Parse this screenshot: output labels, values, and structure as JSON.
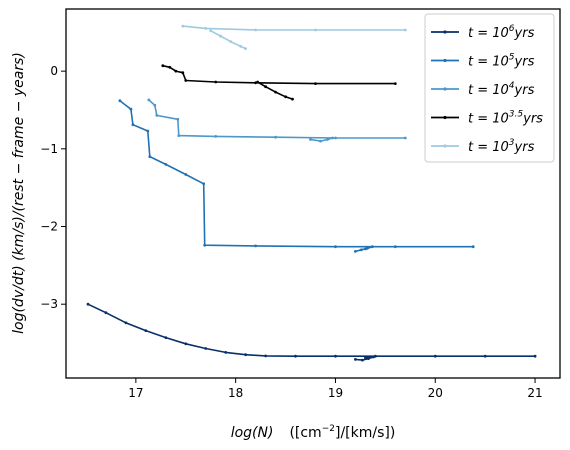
{
  "chart_data": {
    "type": "line",
    "xlabel": "log(N)   ([cm^-2]/[km/s])",
    "xlabel_parts": {
      "main": "log(N)",
      "unit_open": "([cm",
      "unit_exp": "−2",
      "unit_close": "]/[km/s])"
    },
    "ylabel": "log(dv/dt)   (km/s)/(rest − frame − years)",
    "xlim": [
      16.3,
      21.25
    ],
    "ylim": [
      -3.95,
      0.8
    ],
    "xticks": [
      17,
      18,
      19,
      20,
      21
    ],
    "xtick_labels": [
      "17",
      "18",
      "19",
      "20",
      "21"
    ],
    "yticks": [
      0,
      -1,
      -2,
      -3
    ],
    "ytick_labels": [
      "0",
      "−1",
      "−2",
      "−3"
    ],
    "grid": false,
    "legend_position": "top-right",
    "series": [
      {
        "name": "t = 10^6 yrs",
        "label_base": "t = 10",
        "label_exp": "6",
        "label_tail": "yrs",
        "color": "#08306b",
        "points": [
          [
            16.52,
            -3.0
          ],
          [
            16.7,
            -3.11
          ],
          [
            16.9,
            -3.24
          ],
          [
            17.1,
            -3.34
          ],
          [
            17.3,
            -3.43
          ],
          [
            17.5,
            -3.51
          ],
          [
            17.7,
            -3.57
          ],
          [
            17.9,
            -3.62
          ],
          [
            18.1,
            -3.65
          ],
          [
            18.3,
            -3.665
          ],
          [
            18.6,
            -3.67
          ],
          [
            19.0,
            -3.67
          ],
          [
            19.4,
            -3.67
          ],
          [
            20.0,
            -3.67
          ],
          [
            20.5,
            -3.67
          ],
          [
            21.0,
            -3.67
          ]
        ],
        "cluster": [
          [
            19.2,
            -3.71
          ],
          [
            19.27,
            -3.72
          ],
          [
            19.33,
            -3.7
          ],
          [
            19.38,
            -3.68
          ],
          [
            19.3,
            -3.69
          ]
        ]
      },
      {
        "name": "t = 10^5 yrs",
        "label_base": "t = 10",
        "label_exp": "5",
        "label_tail": "yrs",
        "color": "#2171b5",
        "points": [
          [
            16.84,
            -0.38
          ],
          [
            16.95,
            -0.49
          ],
          [
            16.97,
            -0.69
          ],
          [
            17.12,
            -0.77
          ],
          [
            17.14,
            -1.1
          ],
          [
            17.3,
            -1.2
          ],
          [
            17.5,
            -1.33
          ],
          [
            17.68,
            -1.45
          ],
          [
            17.69,
            -2.24
          ],
          [
            18.2,
            -2.25
          ],
          [
            19.0,
            -2.26
          ],
          [
            19.6,
            -2.26
          ],
          [
            20.38,
            -2.26
          ]
        ],
        "cluster": [
          [
            19.2,
            -2.32
          ],
          [
            19.26,
            -2.3
          ],
          [
            19.32,
            -2.28
          ],
          [
            19.37,
            -2.26
          ],
          [
            19.3,
            -2.29
          ]
        ]
      },
      {
        "name": "t = 10^4 yrs",
        "label_base": "t = 10",
        "label_exp": "4",
        "label_tail": "yrs",
        "color": "#4b98c9",
        "points": [
          [
            17.13,
            -0.37
          ],
          [
            17.19,
            -0.44
          ],
          [
            17.21,
            -0.57
          ],
          [
            17.42,
            -0.62
          ],
          [
            17.43,
            -0.83
          ],
          [
            17.8,
            -0.84
          ],
          [
            18.4,
            -0.85
          ],
          [
            19.0,
            -0.86
          ],
          [
            19.7,
            -0.86
          ]
        ],
        "cluster": [
          [
            18.75,
            -0.88
          ],
          [
            18.85,
            -0.9
          ],
          [
            18.92,
            -0.88
          ],
          [
            18.97,
            -0.86
          ]
        ]
      },
      {
        "name": "t = 10^3.5 yrs",
        "label_base": "t = 10",
        "label_exp": "3.5",
        "label_tail": "yrs",
        "color": "#000000",
        "points": [
          [
            17.27,
            0.07
          ],
          [
            17.34,
            0.05
          ],
          [
            17.4,
            0.0
          ],
          [
            17.47,
            -0.02
          ],
          [
            17.5,
            -0.12
          ],
          [
            17.8,
            -0.14
          ],
          [
            18.2,
            -0.15
          ],
          [
            18.8,
            -0.16
          ],
          [
            19.6,
            -0.16
          ]
        ],
        "branch": [
          [
            18.22,
            -0.14
          ],
          [
            18.3,
            -0.2
          ],
          [
            18.4,
            -0.27
          ],
          [
            18.5,
            -0.33
          ],
          [
            18.57,
            -0.36
          ]
        ]
      },
      {
        "name": "t = 10^3 yrs",
        "label_base": "t = 10",
        "label_exp": "3",
        "label_tail": "yrs",
        "color": "#9ecae1",
        "points": [
          [
            17.47,
            0.58
          ],
          [
            17.7,
            0.55
          ],
          [
            18.2,
            0.53
          ],
          [
            18.8,
            0.53
          ],
          [
            19.7,
            0.53
          ]
        ],
        "branch": [
          [
            17.75,
            0.52
          ],
          [
            17.85,
            0.45
          ],
          [
            17.95,
            0.38
          ],
          [
            18.05,
            0.32
          ],
          [
            18.1,
            0.29
          ]
        ]
      }
    ]
  }
}
